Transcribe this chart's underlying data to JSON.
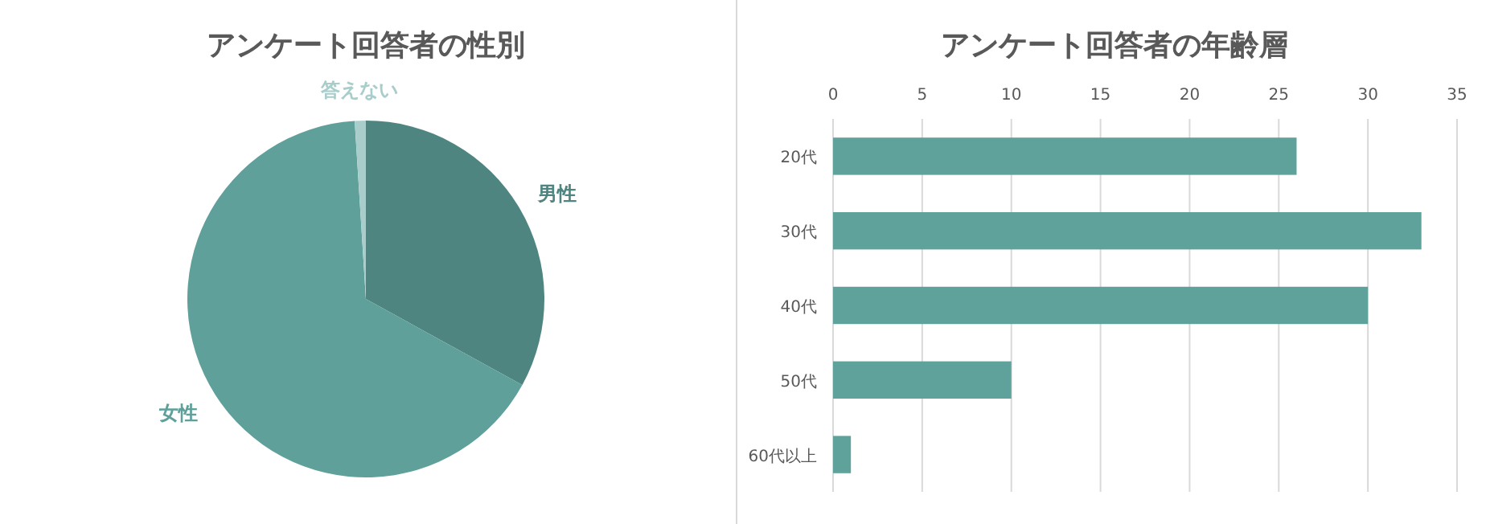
{
  "chart_data": [
    {
      "type": "pie",
      "title": "アンケート回答者の性別",
      "categories": [
        "男性",
        "女性",
        "答えない"
      ],
      "values": [
        33,
        66,
        1
      ],
      "colors": [
        "#4e8580",
        "#60a09b",
        "#a9cdcb"
      ]
    },
    {
      "type": "bar",
      "title": "アンケート回答者の年齢層",
      "orientation": "horizontal",
      "categories": [
        "20代",
        "30代",
        "40代",
        "50代",
        "60代以上"
      ],
      "values": [
        26,
        33,
        30,
        10,
        1
      ],
      "color": "#5fa29c",
      "xlim": [
        0,
        35
      ],
      "xticks": [
        0,
        5,
        10,
        15,
        20,
        25,
        30,
        35
      ],
      "grid": "x"
    }
  ]
}
